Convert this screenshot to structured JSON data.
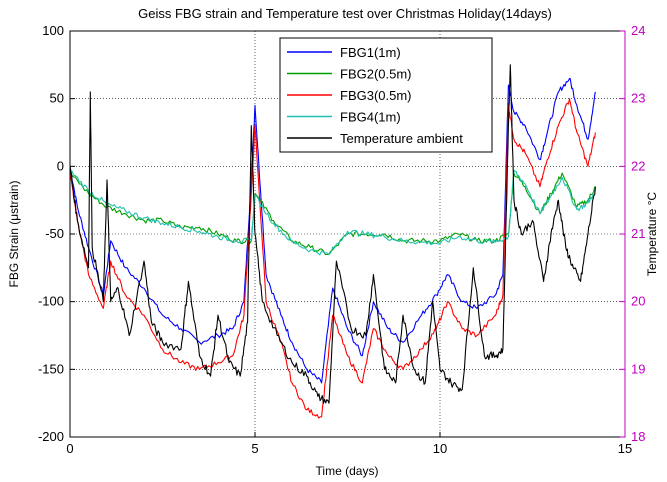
{
  "chart_data": {
    "type": "line",
    "title": "Geiss FBG strain and Temperature test over Christmas Holiday(14days)",
    "xlabel": "Time (days)",
    "ylabel": "FBG Strain (μstrain)",
    "y2label": "Temperature °C",
    "xlim": [
      0,
      15
    ],
    "ylim": [
      -200,
      100
    ],
    "y2lim": [
      18,
      24
    ],
    "xticks": [
      "0",
      "5",
      "10",
      "15"
    ],
    "yticks": [
      "100",
      "50",
      "0",
      "-50",
      "-100",
      "-150",
      "-200"
    ],
    "y2ticks": [
      "24",
      "23",
      "22",
      "21",
      "20",
      "19",
      "18"
    ],
    "grid": true,
    "legend_position": "top-right",
    "right_axis_color": "#c000c0",
    "series": [
      {
        "name": "FBG1(1m)",
        "axis": "left",
        "color": "#0000ff",
        "x": [
          0,
          0.2,
          0.5,
          0.9,
          1.1,
          1.5,
          2.0,
          2.5,
          3.0,
          3.5,
          4.0,
          4.4,
          4.7,
          4.9,
          5.0,
          5.3,
          5.7,
          6.0,
          6.4,
          6.8,
          7.1,
          7.5,
          7.9,
          8.2,
          8.6,
          9.0,
          9.5,
          9.9,
          10.2,
          10.6,
          11.0,
          11.5,
          11.7,
          11.85,
          12.0,
          12.3,
          12.7,
          12.9,
          13.2,
          13.5,
          13.7,
          14.0,
          14.2
        ],
        "y": [
          0,
          -30,
          -60,
          -95,
          -55,
          -75,
          -90,
          -110,
          -120,
          -130,
          -125,
          -120,
          -100,
          -10,
          45,
          -80,
          -110,
          -130,
          -150,
          -160,
          -90,
          -120,
          -140,
          -100,
          -120,
          -130,
          -110,
          -95,
          -80,
          -100,
          -105,
          -95,
          -80,
          60,
          40,
          30,
          5,
          25,
          55,
          65,
          45,
          20,
          55
        ]
      },
      {
        "name": "FBG2(0.5m)",
        "axis": "left",
        "color": "#00a000",
        "x": [
          0,
          0.5,
          1.0,
          1.5,
          2.0,
          2.5,
          3.0,
          3.5,
          4.0,
          4.5,
          4.9,
          5.0,
          5.5,
          6.0,
          6.5,
          7.0,
          7.5,
          8.0,
          8.5,
          9.0,
          9.5,
          10.0,
          10.5,
          11.0,
          11.5,
          11.85,
          12.0,
          12.3,
          12.7,
          13.0,
          13.3,
          13.7,
          14.0,
          14.2
        ],
        "y": [
          -5,
          -20,
          -30,
          -35,
          -40,
          -40,
          -45,
          -45,
          -50,
          -55,
          -55,
          -20,
          -40,
          -55,
          -60,
          -65,
          -50,
          -50,
          -50,
          -55,
          -55,
          -55,
          -50,
          -55,
          -55,
          -50,
          -5,
          -15,
          -35,
          -20,
          -5,
          -30,
          -25,
          -15
        ]
      },
      {
        "name": "FBG3(0.5m)",
        "axis": "left",
        "color": "#ff0000",
        "x": [
          0,
          0.2,
          0.5,
          0.9,
          1.1,
          1.5,
          2.0,
          2.5,
          3.0,
          3.5,
          4.0,
          4.4,
          4.7,
          4.9,
          5.0,
          5.3,
          5.7,
          6.0,
          6.4,
          6.8,
          7.1,
          7.5,
          7.9,
          8.2,
          8.6,
          9.0,
          9.5,
          9.9,
          10.2,
          10.6,
          11.0,
          11.5,
          11.7,
          11.85,
          12.0,
          12.3,
          12.7,
          12.9,
          13.2,
          13.5,
          13.7,
          14.0,
          14.2
        ],
        "y": [
          -5,
          -40,
          -80,
          -105,
          -70,
          -95,
          -110,
          -135,
          -145,
          -150,
          -145,
          -140,
          -110,
          -20,
          30,
          -100,
          -130,
          -160,
          -180,
          -185,
          -110,
          -140,
          -160,
          -120,
          -140,
          -150,
          -135,
          -120,
          -100,
          -120,
          -125,
          -110,
          -95,
          45,
          20,
          10,
          -15,
          5,
          30,
          50,
          25,
          0,
          25
        ]
      },
      {
        "name": "FBG4(1m)",
        "axis": "left",
        "color": "#20c0b0",
        "x": [
          0,
          0.5,
          1.0,
          1.5,
          2.0,
          2.5,
          3.0,
          3.5,
          4.0,
          4.5,
          4.9,
          5.0,
          5.5,
          6.0,
          6.5,
          7.0,
          7.5,
          8.0,
          8.5,
          9.0,
          9.5,
          10.0,
          10.5,
          11.0,
          11.5,
          11.85,
          12.0,
          12.3,
          12.7,
          13.0,
          13.3,
          13.7,
          14.0,
          14.2
        ],
        "y": [
          -3,
          -18,
          -28,
          -33,
          -38,
          -42,
          -45,
          -48,
          -52,
          -55,
          -55,
          -22,
          -42,
          -56,
          -62,
          -65,
          -48,
          -50,
          -52,
          -55,
          -56,
          -57,
          -52,
          -55,
          -56,
          -52,
          -3,
          -13,
          -35,
          -22,
          -8,
          -32,
          -27,
          -18
        ]
      },
      {
        "name": "Temperature ambient",
        "axis": "right",
        "color": "#000000",
        "x": [
          0,
          0.2,
          0.5,
          0.55,
          0.6,
          0.9,
          1.0,
          1.1,
          1.3,
          1.6,
          2.0,
          2.2,
          2.5,
          3.0,
          3.2,
          3.5,
          3.8,
          4.0,
          4.3,
          4.6,
          4.8,
          4.9,
          5.0,
          5.2,
          5.6,
          6.0,
          6.4,
          6.7,
          7.0,
          7.2,
          7.6,
          8.0,
          8.2,
          8.5,
          8.8,
          9.0,
          9.3,
          9.6,
          9.8,
          10.0,
          10.3,
          10.6,
          10.9,
          11.2,
          11.5,
          11.7,
          11.85,
          11.9,
          12.0,
          12.2,
          12.5,
          12.8,
          13.0,
          13.2,
          13.4,
          13.6,
          13.8,
          14.0,
          14.2
        ],
        "y": [
          22.0,
          21.2,
          20.5,
          23.1,
          20.8,
          20.0,
          21.8,
          20.0,
          20.2,
          19.5,
          20.6,
          19.7,
          19.4,
          19.3,
          20.3,
          19.2,
          18.9,
          19.8,
          19.1,
          18.9,
          19.7,
          22.6,
          21.0,
          20.0,
          19.5,
          19.1,
          18.9,
          18.6,
          18.5,
          20.6,
          19.6,
          19.5,
          20.4,
          19.0,
          18.8,
          19.8,
          19.0,
          18.8,
          20.0,
          19.0,
          18.8,
          18.7,
          20.5,
          19.2,
          19.2,
          19.3,
          22.6,
          23.5,
          21.5,
          21.0,
          21.2,
          20.3,
          21.0,
          21.5,
          20.8,
          20.5,
          20.3,
          21.0,
          21.7
        ]
      }
    ]
  }
}
